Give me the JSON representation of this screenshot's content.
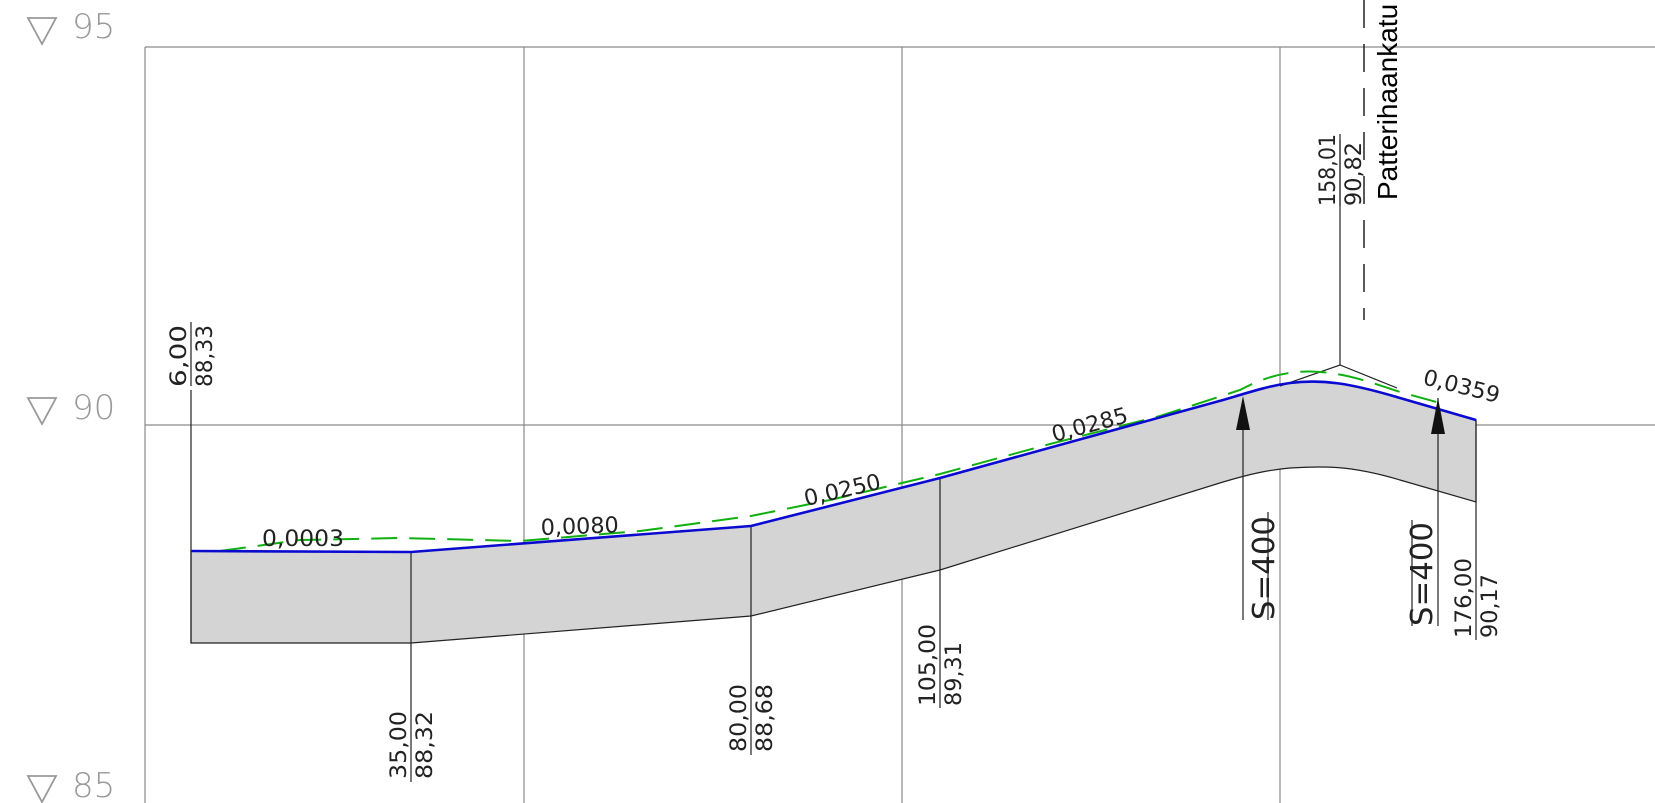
{
  "elevation_markers": [
    {
      "value": 95,
      "label": "95"
    },
    {
      "value": 90,
      "label": "90"
    },
    {
      "value": 85,
      "label": "85"
    }
  ],
  "profile_points": [
    {
      "station": 6.0,
      "elevation": 88.33,
      "station_label": "6,00",
      "elevation_label": "88,33"
    },
    {
      "station": 35.0,
      "elevation": 88.32,
      "station_label": "35,00",
      "elevation_label": "88,32"
    },
    {
      "station": 80.0,
      "elevation": 88.68,
      "station_label": "80,00",
      "elevation_label": "88,68"
    },
    {
      "station": 105.0,
      "elevation": 89.31,
      "station_label": "105,00",
      "elevation_label": "89,31"
    },
    {
      "station": 158.01,
      "elevation": 90.82,
      "station_label": "158,01",
      "elevation_label": "90,82"
    },
    {
      "station": 176.0,
      "elevation": 90.17,
      "station_label": "176,00",
      "elevation_label": "90,17"
    }
  ],
  "grades": [
    "0,0003",
    "0,0080",
    "0,0250",
    "0,0285",
    "0,0359"
  ],
  "curves": [
    {
      "label": "S=400"
    },
    {
      "label": "S=400"
    }
  ],
  "station_marker": {
    "label": "Patterihaankatu"
  },
  "colors": {
    "design_line": "#0a0ad0",
    "existing_ground": "#10b010",
    "section_fill": "#d4d4d4",
    "grid": "#8a8a8a"
  }
}
